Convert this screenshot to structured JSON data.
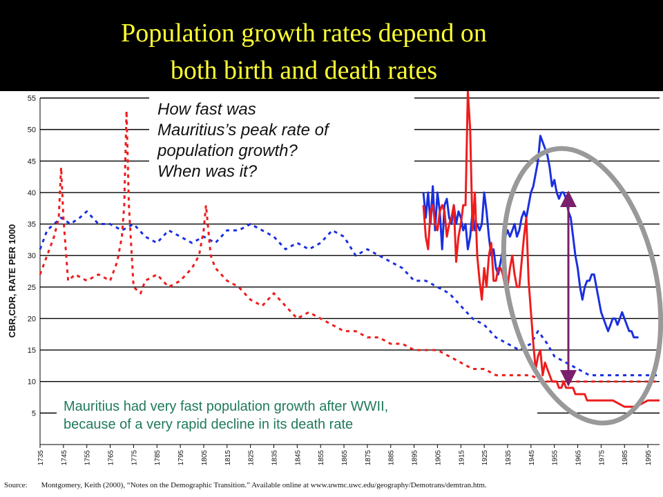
{
  "slide": {
    "title_line1": "Population growth rates depend on",
    "title_line2": "both birth and death rates",
    "question_lines": [
      "How fast was",
      "Mauritius’s peak rate of",
      "population growth?",
      "When was it?"
    ],
    "note_lines": [
      "Mauritius had very fast population growth after WWII,",
      "because of a very rapid decline in its death rate"
    ],
    "source_label": "Source:",
    "source_text": "Montgomery, Keith (2000), “Notes on the Demographic Transition.”  Available online at www.uwmc.uwc.edu/geography/Demotrans/demtran.htm.",
    "colors": {
      "title": "#ffff33",
      "birth": "#1a2fe0",
      "death": "#ee1c1c",
      "note": "#1f7a5a",
      "annotation_arrow": "#7a1f6b",
      "ellipse": "#999999"
    }
  },
  "chart_data": {
    "type": "line",
    "ylabel": "CBR,CDR, RATE PER 1000",
    "y_ticks": [
      5,
      10,
      15,
      20,
      25,
      30,
      35,
      40,
      45,
      50,
      55
    ],
    "ylim": [
      0,
      55
    ],
    "x_ticks": [
      "1735",
      "1745",
      "1755",
      "1765",
      "1775",
      "1785",
      "1795",
      "1805",
      "1815",
      "1825",
      "1835",
      "1845",
      "1855",
      "1865",
      "1875",
      "1885",
      "1895",
      "1905",
      "1915",
      "1925",
      "1935",
      "1945",
      "1955",
      "1965",
      "1975",
      "1985",
      "1995"
    ],
    "xlim": [
      1735,
      2000
    ],
    "grid": "horizontal",
    "series": [
      {
        "key": "birth_estimated",
        "style": "dashed",
        "points": [
          [
            1735,
            31
          ],
          [
            1738,
            34
          ],
          [
            1741,
            35
          ],
          [
            1744,
            36
          ],
          [
            1748,
            35
          ],
          [
            1752,
            36
          ],
          [
            1755,
            37
          ],
          [
            1760,
            35
          ],
          [
            1765,
            35
          ],
          [
            1770,
            34
          ],
          [
            1775,
            35
          ],
          [
            1780,
            33
          ],
          [
            1785,
            32
          ],
          [
            1790,
            34
          ],
          [
            1795,
            33
          ],
          [
            1800,
            32
          ],
          [
            1805,
            33
          ],
          [
            1810,
            32
          ],
          [
            1815,
            34
          ],
          [
            1820,
            34
          ],
          [
            1825,
            35
          ],
          [
            1830,
            34
          ],
          [
            1835,
            33
          ],
          [
            1840,
            31
          ],
          [
            1845,
            32
          ],
          [
            1850,
            31
          ],
          [
            1855,
            32
          ],
          [
            1860,
            34
          ],
          [
            1865,
            33
          ],
          [
            1870,
            30
          ],
          [
            1875,
            31
          ],
          [
            1880,
            30
          ],
          [
            1885,
            29
          ],
          [
            1890,
            28
          ],
          [
            1895,
            26
          ],
          [
            1900,
            26
          ],
          [
            1905,
            25
          ],
          [
            1910,
            24
          ],
          [
            1915,
            22
          ],
          [
            1920,
            20
          ],
          [
            1925,
            19
          ],
          [
            1930,
            17
          ],
          [
            1935,
            16
          ],
          [
            1940,
            15
          ],
          [
            1945,
            16
          ],
          [
            1948,
            18
          ],
          [
            1950,
            17
          ],
          [
            1952,
            16
          ],
          [
            1955,
            14
          ],
          [
            1960,
            13
          ],
          [
            1965,
            12
          ],
          [
            1970,
            11
          ],
          [
            1975,
            11
          ],
          [
            1980,
            11
          ],
          [
            1985,
            11
          ],
          [
            1990,
            11
          ],
          [
            1995,
            11
          ],
          [
            2000,
            11
          ]
        ]
      },
      {
        "key": "death_estimated",
        "style": "dashed",
        "points": [
          [
            1735,
            27
          ],
          [
            1738,
            30
          ],
          [
            1741,
            33
          ],
          [
            1743,
            36
          ],
          [
            1744,
            44
          ],
          [
            1745,
            36
          ],
          [
            1747,
            26
          ],
          [
            1750,
            27
          ],
          [
            1755,
            26
          ],
          [
            1760,
            27
          ],
          [
            1765,
            26
          ],
          [
            1768,
            29
          ],
          [
            1770,
            33
          ],
          [
            1771,
            38
          ],
          [
            1772,
            53
          ],
          [
            1773,
            38
          ],
          [
            1775,
            25
          ],
          [
            1778,
            24
          ],
          [
            1780,
            26
          ],
          [
            1785,
            27
          ],
          [
            1790,
            25
          ],
          [
            1795,
            26
          ],
          [
            1800,
            28
          ],
          [
            1803,
            30
          ],
          [
            1805,
            34
          ],
          [
            1806,
            38
          ],
          [
            1808,
            30
          ],
          [
            1810,
            28
          ],
          [
            1815,
            26
          ],
          [
            1820,
            25
          ],
          [
            1825,
            23
          ],
          [
            1830,
            22
          ],
          [
            1835,
            24
          ],
          [
            1840,
            22
          ],
          [
            1845,
            20
          ],
          [
            1850,
            21
          ],
          [
            1855,
            20
          ],
          [
            1860,
            19
          ],
          [
            1865,
            18
          ],
          [
            1870,
            18
          ],
          [
            1875,
            17
          ],
          [
            1880,
            17
          ],
          [
            1885,
            16
          ],
          [
            1890,
            16
          ],
          [
            1895,
            15
          ],
          [
            1900,
            15
          ],
          [
            1905,
            15
          ],
          [
            1910,
            14
          ],
          [
            1915,
            13
          ],
          [
            1920,
            12
          ],
          [
            1925,
            12
          ],
          [
            1930,
            11
          ],
          [
            1935,
            11
          ],
          [
            1940,
            11
          ],
          [
            1945,
            11
          ],
          [
            1950,
            10
          ],
          [
            1955,
            10
          ],
          [
            1960,
            10
          ],
          [
            1965,
            10
          ],
          [
            1970,
            10
          ],
          [
            1975,
            10
          ],
          [
            1980,
            10
          ],
          [
            1985,
            10
          ],
          [
            1990,
            10
          ],
          [
            1995,
            10
          ],
          [
            2000,
            10
          ]
        ]
      },
      {
        "key": "birth_mauritius",
        "style": "solid",
        "points": [
          [
            1899,
            40
          ],
          [
            1900,
            36
          ],
          [
            1901,
            40
          ],
          [
            1902,
            35
          ],
          [
            1903,
            41
          ],
          [
            1904,
            34
          ],
          [
            1905,
            40
          ],
          [
            1906,
            37
          ],
          [
            1907,
            31
          ],
          [
            1908,
            38
          ],
          [
            1909,
            39
          ],
          [
            1910,
            36
          ],
          [
            1911,
            35
          ],
          [
            1912,
            38
          ],
          [
            1913,
            35
          ],
          [
            1914,
            37
          ],
          [
            1915,
            36
          ],
          [
            1916,
            34
          ],
          [
            1917,
            35
          ],
          [
            1918,
            31
          ],
          [
            1919,
            33
          ],
          [
            1920,
            37
          ],
          [
            1921,
            34
          ],
          [
            1922,
            35
          ],
          [
            1923,
            34
          ],
          [
            1924,
            35
          ],
          [
            1925,
            40
          ],
          [
            1926,
            37
          ],
          [
            1927,
            33
          ],
          [
            1928,
            30
          ],
          [
            1929,
            31
          ],
          [
            1930,
            28
          ],
          [
            1931,
            27
          ],
          [
            1932,
            29
          ],
          [
            1933,
            31
          ],
          [
            1934,
            33
          ],
          [
            1935,
            34
          ],
          [
            1936,
            33
          ],
          [
            1937,
            34
          ],
          [
            1938,
            35
          ],
          [
            1939,
            33
          ],
          [
            1940,
            34
          ],
          [
            1941,
            36
          ],
          [
            1942,
            37
          ],
          [
            1943,
            36
          ],
          [
            1944,
            38
          ],
          [
            1945,
            40
          ],
          [
            1946,
            41
          ],
          [
            1947,
            43
          ],
          [
            1948,
            45
          ],
          [
            1949,
            49
          ],
          [
            1950,
            48
          ],
          [
            1951,
            47
          ],
          [
            1952,
            46
          ],
          [
            1953,
            44
          ],
          [
            1954,
            41
          ],
          [
            1955,
            42
          ],
          [
            1956,
            40
          ],
          [
            1957,
            39
          ],
          [
            1958,
            40
          ],
          [
            1959,
            40
          ],
          [
            1960,
            39
          ],
          [
            1961,
            37
          ],
          [
            1962,
            36
          ],
          [
            1963,
            33
          ],
          [
            1964,
            30
          ],
          [
            1965,
            28
          ],
          [
            1966,
            25
          ],
          [
            1967,
            23
          ],
          [
            1968,
            25
          ],
          [
            1969,
            26
          ],
          [
            1970,
            26
          ],
          [
            1971,
            27
          ],
          [
            1972,
            27
          ],
          [
            1973,
            25
          ],
          [
            1974,
            23
          ],
          [
            1975,
            21
          ],
          [
            1976,
            20
          ],
          [
            1977,
            19
          ],
          [
            1978,
            18
          ],
          [
            1979,
            19
          ],
          [
            1980,
            20
          ],
          [
            1981,
            20
          ],
          [
            1982,
            19
          ],
          [
            1983,
            20
          ],
          [
            1984,
            21
          ],
          [
            1985,
            20
          ],
          [
            1986,
            19
          ],
          [
            1987,
            18
          ],
          [
            1988,
            18
          ],
          [
            1989,
            17
          ],
          [
            1990,
            17
          ],
          [
            1991,
            17
          ]
        ]
      },
      {
        "key": "death_mauritius",
        "style": "solid",
        "points": [
          [
            1899,
            38
          ],
          [
            1900,
            33
          ],
          [
            1901,
            31
          ],
          [
            1902,
            37
          ],
          [
            1903,
            38
          ],
          [
            1904,
            35
          ],
          [
            1905,
            34
          ],
          [
            1906,
            37
          ],
          [
            1907,
            38
          ],
          [
            1908,
            37
          ],
          [
            1909,
            33
          ],
          [
            1910,
            35
          ],
          [
            1911,
            36
          ],
          [
            1912,
            38
          ],
          [
            1913,
            29
          ],
          [
            1914,
            33
          ],
          [
            1915,
            35
          ],
          [
            1916,
            38
          ],
          [
            1917,
            38
          ],
          [
            1918,
            56
          ],
          [
            1919,
            50
          ],
          [
            1920,
            34
          ],
          [
            1921,
            40
          ],
          [
            1922,
            30
          ],
          [
            1923,
            26
          ],
          [
            1924,
            23
          ],
          [
            1925,
            28
          ],
          [
            1926,
            25
          ],
          [
            1927,
            30
          ],
          [
            1928,
            32
          ],
          [
            1929,
            26
          ],
          [
            1930,
            26
          ],
          [
            1931,
            28
          ],
          [
            1932,
            28
          ],
          [
            1933,
            27
          ],
          [
            1934,
            25
          ],
          [
            1935,
            25
          ],
          [
            1936,
            28
          ],
          [
            1937,
            30
          ],
          [
            1938,
            27
          ],
          [
            1939,
            25
          ],
          [
            1940,
            25
          ],
          [
            1941,
            29
          ],
          [
            1942,
            33
          ],
          [
            1943,
            36
          ],
          [
            1944,
            26
          ],
          [
            1945,
            21
          ],
          [
            1946,
            16
          ],
          [
            1947,
            12
          ],
          [
            1948,
            14
          ],
          [
            1949,
            15
          ],
          [
            1950,
            11
          ],
          [
            1951,
            13
          ],
          [
            1952,
            12
          ],
          [
            1953,
            11
          ],
          [
            1954,
            10
          ],
          [
            1955,
            10
          ],
          [
            1956,
            10
          ],
          [
            1957,
            9
          ],
          [
            1958,
            9
          ],
          [
            1959,
            10
          ],
          [
            1960,
            9
          ],
          [
            1961,
            9
          ],
          [
            1962,
            9
          ],
          [
            1963,
            9
          ],
          [
            1964,
            8
          ],
          [
            1965,
            8
          ],
          [
            1966,
            8
          ],
          [
            1967,
            8
          ],
          [
            1968,
            8
          ],
          [
            1969,
            7
          ],
          [
            1970,
            7
          ],
          [
            1971,
            7
          ],
          [
            1972,
            7
          ],
          [
            1973,
            7
          ],
          [
            1974,
            7
          ],
          [
            1975,
            7
          ],
          [
            1976,
            7
          ],
          [
            1977,
            7
          ],
          [
            1978,
            7
          ],
          [
            1979,
            7
          ],
          [
            1980,
            7
          ],
          [
            1985,
            6
          ],
          [
            1990,
            6
          ],
          [
            1995,
            7
          ],
          [
            2000,
            7
          ]
        ]
      }
    ]
  }
}
